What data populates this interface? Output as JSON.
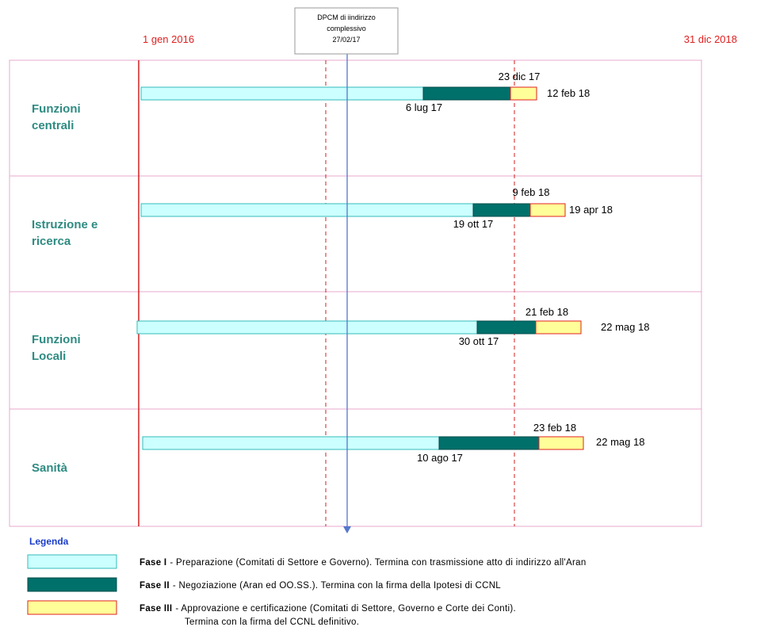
{
  "header": {
    "start_date": "1 gen 2016",
    "end_date": "31 dic 2018",
    "milestone": [
      "DPCM di iindirizzo",
      "complessivo",
      "27/02/17"
    ]
  },
  "rows": [
    {
      "label": [
        "Funzioni",
        "centrali"
      ],
      "phase1_end": "6 lug 17",
      "phase2_end": "23 dic 17",
      "phase3_end": "12 feb 18"
    },
    {
      "label": [
        "Istruzione e",
        "ricerca"
      ],
      "phase1_end": "19 ott 17",
      "phase2_end": "9 feb 18",
      "phase3_end": "19 apr 18"
    },
    {
      "label": [
        "Funzioni",
        "Locali"
      ],
      "phase1_end": "30 ott 17",
      "phase2_end": "21 feb 18",
      "phase3_end": "22 mag 18"
    },
    {
      "label": [
        "Sanità"
      ],
      "phase1_end": "10 ago 17",
      "phase2_end": "23 feb 18",
      "phase3_end": "22 mag 18"
    }
  ],
  "legend": {
    "title": "Legenda",
    "items": [
      {
        "phase": "Fase I",
        "description": [
          "- Preparazione (Comitati di Settore e Governo). Termina con trasmissione atto di indirizzo all'Aran"
        ]
      },
      {
        "phase": "Fase II",
        "description": [
          "- Negoziazione (Aran ed OO.SS.). Termina con la firma della Ipotesi di CCNL"
        ]
      },
      {
        "phase": "Fase III",
        "description": [
          "- Approvazione e certificazione (Comitati di Settore, Governo e Corte dei Conti).",
          "Termina con la firma del CCNL definitivo."
        ]
      }
    ]
  }
}
